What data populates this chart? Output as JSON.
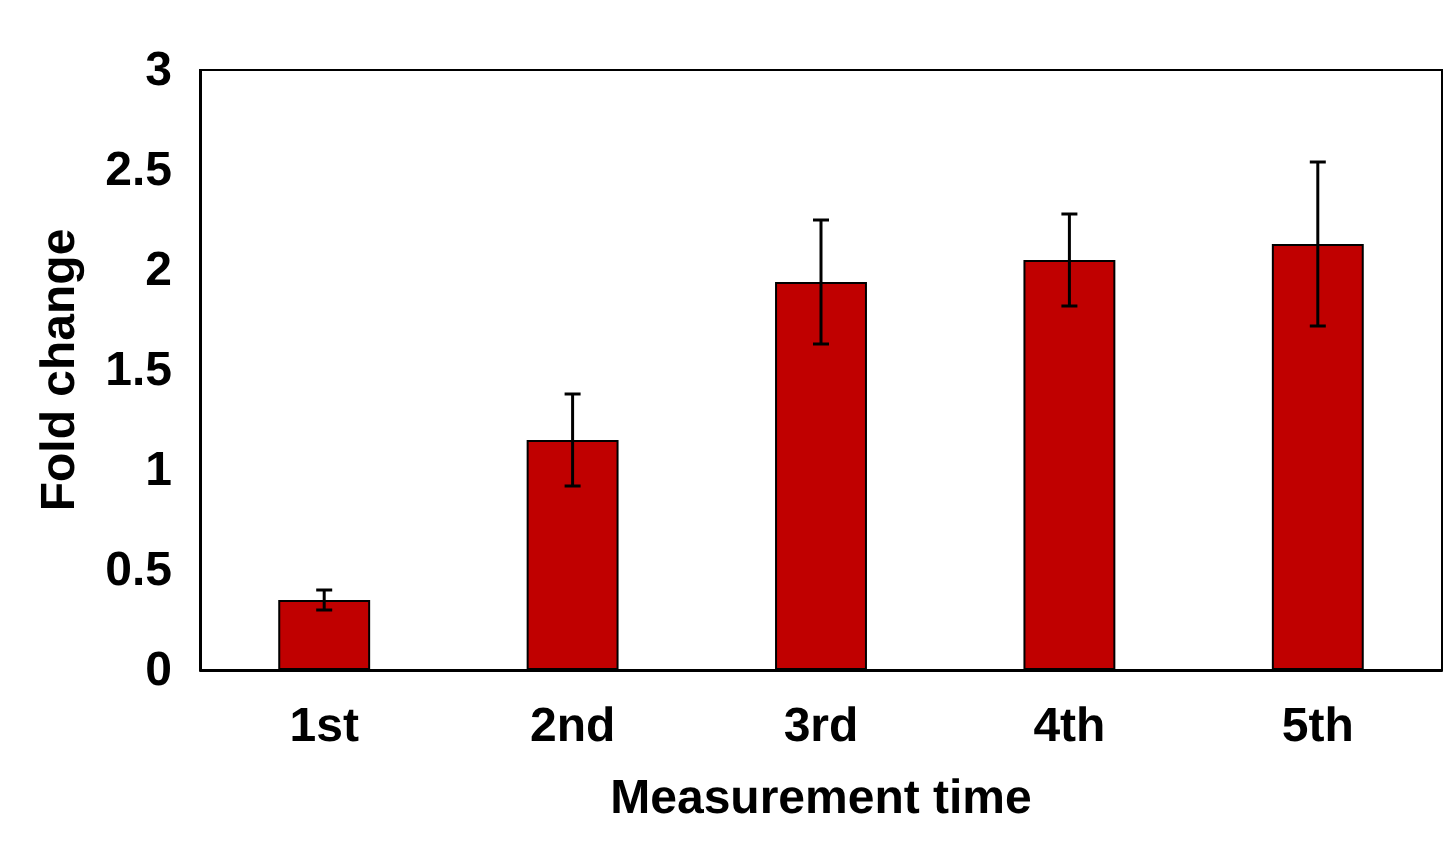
{
  "chart_data": {
    "type": "bar",
    "xlabel": "Measurement time",
    "ylabel": "Fold change",
    "categories": [
      "1st",
      "2nd",
      "3rd",
      "4th",
      "5th"
    ],
    "values": [
      0.35,
      1.15,
      1.94,
      2.05,
      2.13
    ],
    "errors": [
      0.05,
      0.23,
      0.31,
      0.23,
      0.41
    ],
    "color": "#c00000",
    "ylim": [
      0,
      3
    ],
    "yticks": [
      0,
      0.5,
      1,
      1.5,
      2,
      2.5,
      3
    ],
    "grid": false
  }
}
